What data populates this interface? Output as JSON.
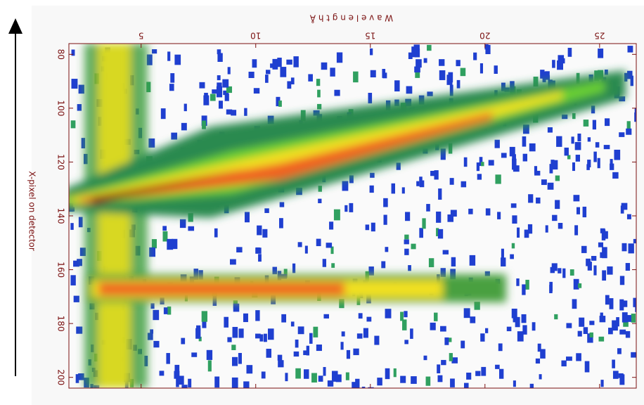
{
  "chart_data": {
    "type": "heatmap",
    "x_label": "W a v e l e n g t h  Å",
    "y_label": "X-pixel on detector",
    "xlim": [
      1.85,
      26.6
    ],
    "xticks": [
      5,
      10,
      15,
      20,
      25
    ],
    "ylim": [
      204,
      76
    ],
    "yticks": [
      80,
      100,
      120,
      140,
      160,
      180,
      200
    ]
  }
}
